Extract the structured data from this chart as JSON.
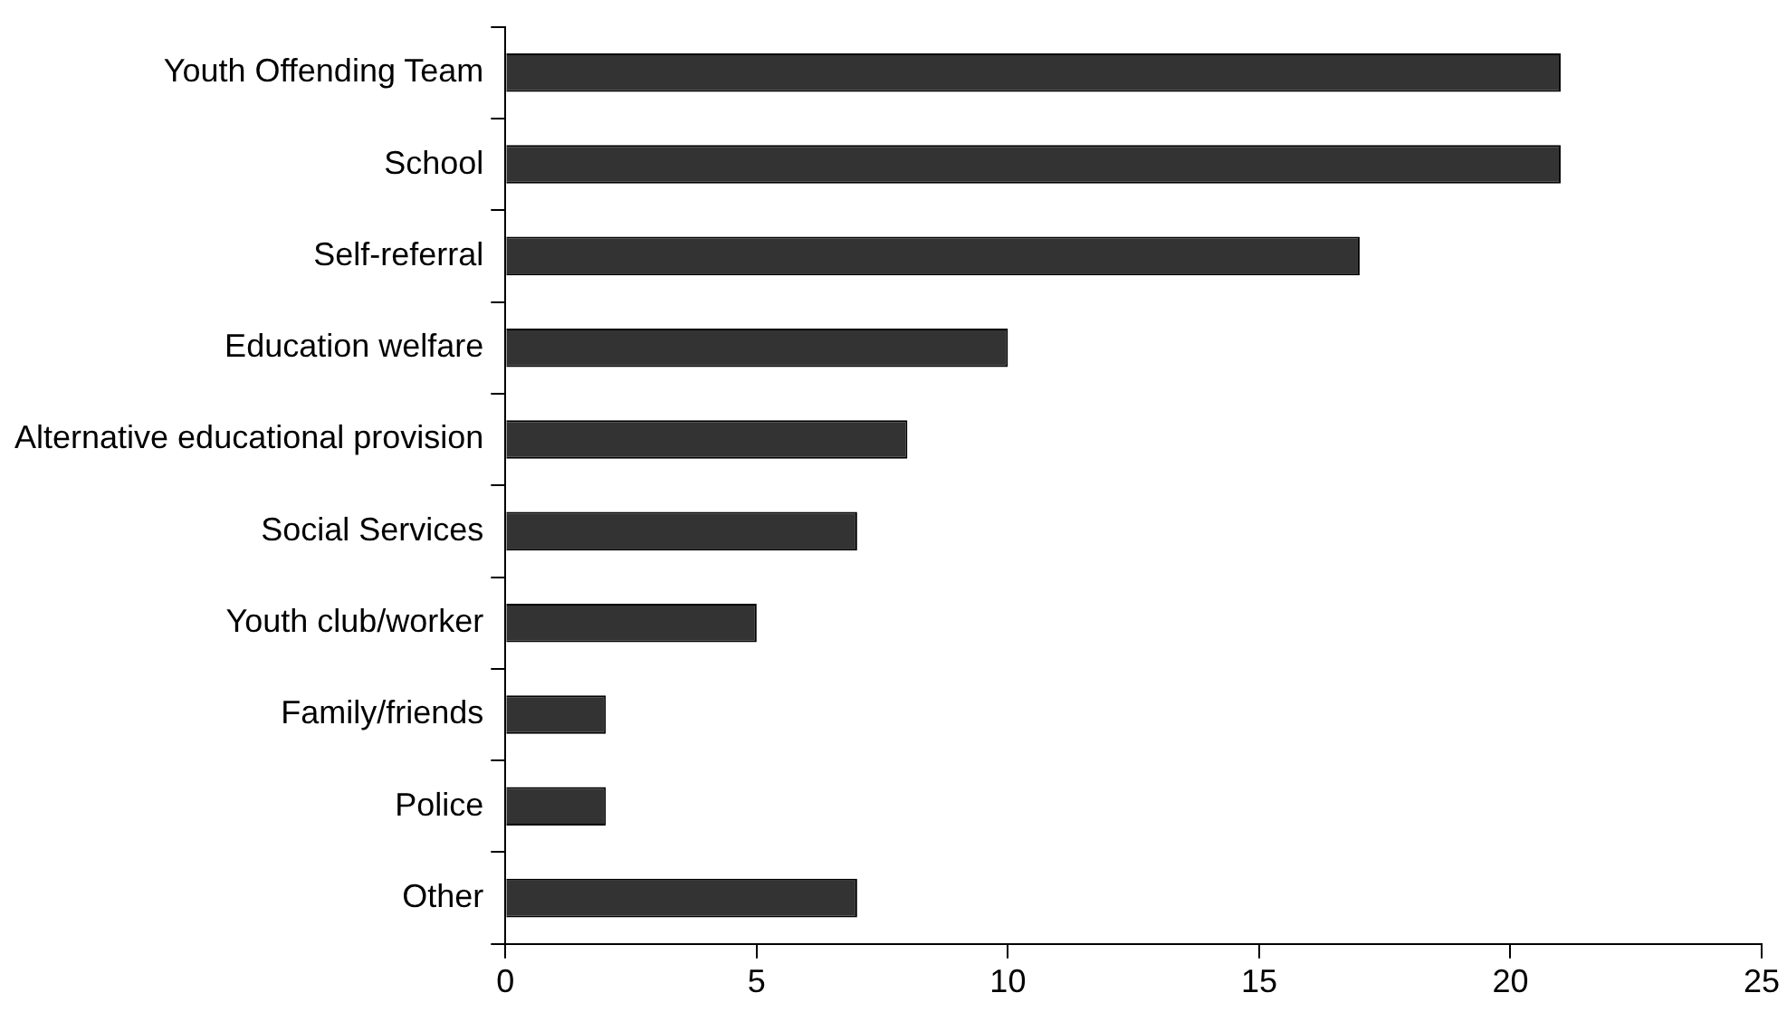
{
  "chart_data": {
    "type": "bar",
    "orientation": "horizontal",
    "categories": [
      "Youth Offending Team",
      "School",
      "Self-referral",
      "Education welfare",
      "Alternative educational provision",
      "Social Services",
      "Youth club/worker",
      "Family/friends",
      "Police",
      "Other"
    ],
    "values": [
      21,
      21,
      17,
      10,
      8,
      7,
      5,
      2,
      2,
      7
    ],
    "color": "#333333",
    "xlim": [
      0,
      25
    ],
    "xticks": [
      0,
      5,
      10,
      15,
      20,
      25
    ],
    "grid": false,
    "legend": false
  }
}
